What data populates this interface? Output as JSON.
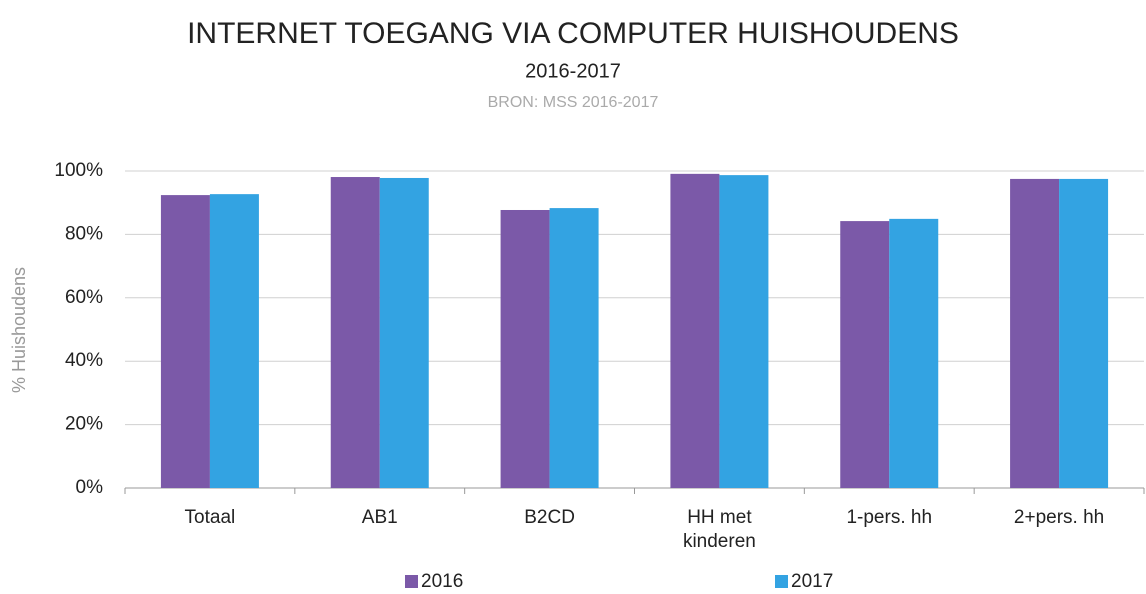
{
  "chart_data": {
    "type": "bar",
    "title": "INTERNET TOEGANG VIA COMPUTER HUISHOUDENS",
    "subtitle": "2016-2017",
    "source": "BRON: MSS 2016-2017",
    "y_label": "% Huishoudens",
    "categories": [
      "Totaal",
      "AB1",
      "B2CD",
      "HH met kinderen",
      "1-pers. hh",
      "2+pers. hh"
    ],
    "series": [
      {
        "name": "2016",
        "color": "#7b59a8",
        "values": [
          92.4,
          98.1,
          87.7,
          99.1,
          84.2,
          97.5
        ]
      },
      {
        "name": "2017",
        "color": "#33a3e2",
        "values": [
          92.7,
          97.8,
          88.3,
          98.7,
          84.9,
          97.5
        ]
      }
    ],
    "ylim": [
      0,
      100
    ],
    "yticks": [
      {
        "value": 0,
        "label": "0%"
      },
      {
        "value": 20,
        "label": "20%"
      },
      {
        "value": 40,
        "label": "40%"
      },
      {
        "value": 60,
        "label": "60%"
      },
      {
        "value": 80,
        "label": "80%"
      },
      {
        "value": 100,
        "label": "100%"
      }
    ],
    "grid": true,
    "legend": "bottom"
  }
}
